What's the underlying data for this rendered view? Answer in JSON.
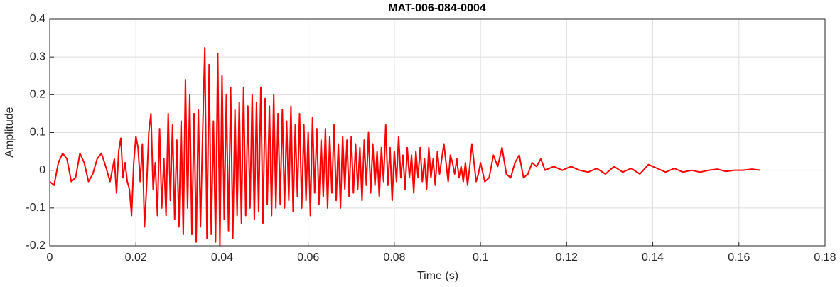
{
  "chart_data": {
    "type": "line",
    "title": "MAT-006-084-0004",
    "x_label": "Time (s)",
    "y_label": "Amplitude",
    "color": "#ff0000",
    "grid": true,
    "xlim": [
      0,
      0.18
    ],
    "xticks": [
      0,
      0.02,
      0.04,
      0.06,
      0.08,
      0.1,
      0.12,
      0.14,
      0.16,
      0.18
    ],
    "ylim": [
      -0.2,
      0.4
    ],
    "yticks": [
      -0.2,
      -0.1,
      0,
      0.1,
      0.2,
      0.3,
      0.4
    ],
    "x": [
      0,
      0.001,
      0.002,
      0.003,
      0.004,
      0.005,
      0.006,
      0.007,
      0.008,
      0.009,
      0.01,
      0.011,
      0.012,
      0.013,
      0.014,
      0.015,
      0.0155,
      0.016,
      0.0165,
      0.017,
      0.0175,
      0.018,
      0.0185,
      0.019,
      0.0195,
      0.02,
      0.0205,
      0.021,
      0.0215,
      0.022,
      0.0225,
      0.023,
      0.0235,
      0.024,
      0.0245,
      0.025,
      0.0255,
      0.026,
      0.0265,
      0.027,
      0.0275,
      0.028,
      0.0285,
      0.029,
      0.0295,
      0.03,
      0.0305,
      0.031,
      0.0315,
      0.032,
      0.0325,
      0.033,
      0.0335,
      0.034,
      0.0345,
      0.035,
      0.0355,
      0.036,
      0.0365,
      0.037,
      0.0375,
      0.038,
      0.0385,
      0.039,
      0.0395,
      0.04,
      0.0405,
      0.041,
      0.0415,
      0.042,
      0.0425,
      0.043,
      0.0435,
      0.044,
      0.0445,
      0.045,
      0.0455,
      0.046,
      0.0465,
      0.047,
      0.0475,
      0.048,
      0.0485,
      0.049,
      0.0495,
      0.05,
      0.0505,
      0.051,
      0.0515,
      0.052,
      0.0525,
      0.053,
      0.0535,
      0.054,
      0.0545,
      0.055,
      0.0555,
      0.056,
      0.0565,
      0.057,
      0.0575,
      0.058,
      0.0585,
      0.059,
      0.0595,
      0.06,
      0.0605,
      0.061,
      0.0615,
      0.062,
      0.0625,
      0.063,
      0.0635,
      0.064,
      0.0645,
      0.065,
      0.0655,
      0.066,
      0.0665,
      0.067,
      0.0675,
      0.068,
      0.0685,
      0.069,
      0.0695,
      0.07,
      0.0705,
      0.071,
      0.0715,
      0.072,
      0.0725,
      0.073,
      0.0735,
      0.074,
      0.0745,
      0.075,
      0.0755,
      0.076,
      0.0765,
      0.077,
      0.0775,
      0.078,
      0.0785,
      0.079,
      0.0795,
      0.08,
      0.0805,
      0.081,
      0.0815,
      0.082,
      0.0825,
      0.083,
      0.0835,
      0.084,
      0.0845,
      0.085,
      0.0855,
      0.086,
      0.0865,
      0.087,
      0.0875,
      0.088,
      0.0885,
      0.089,
      0.0895,
      0.09,
      0.0905,
      0.091,
      0.0915,
      0.092,
      0.0925,
      0.093,
      0.0935,
      0.094,
      0.0945,
      0.095,
      0.0955,
      0.096,
      0.0965,
      0.097,
      0.0975,
      0.098,
      0.0985,
      0.099,
      0.0995,
      0.1,
      0.101,
      0.102,
      0.103,
      0.104,
      0.105,
      0.106,
      0.107,
      0.108,
      0.109,
      0.11,
      0.111,
      0.112,
      0.113,
      0.114,
      0.115,
      0.117,
      0.119,
      0.121,
      0.123,
      0.125,
      0.127,
      0.129,
      0.131,
      0.133,
      0.135,
      0.137,
      0.139,
      0.141,
      0.143,
      0.145,
      0.147,
      0.149,
      0.151,
      0.153,
      0.155,
      0.157,
      0.159,
      0.161,
      0.163,
      0.165
    ],
    "values": [
      -0.03,
      -0.04,
      0.02,
      0.045,
      0.03,
      -0.03,
      -0.02,
      0.045,
      0.02,
      -0.03,
      -0.01,
      0.03,
      0.045,
      0.01,
      -0.03,
      0.03,
      -0.06,
      0.05,
      0.085,
      -0.02,
      0.02,
      -0.03,
      -0.05,
      -0.12,
      0.02,
      0.09,
      0.06,
      -0.03,
      0.07,
      -0.15,
      -0.04,
      0.1,
      0.15,
      -0.05,
      0.02,
      -0.12,
      0.11,
      -0.1,
      0.03,
      -0.12,
      0.15,
      -0.08,
      0.12,
      -0.13,
      0.08,
      -0.15,
      0.13,
      -0.17,
      0.24,
      -0.1,
      0.2,
      -0.17,
      0.15,
      -0.19,
      0.16,
      -0.15,
      0.1,
      0.325,
      -0.18,
      0.28,
      -0.17,
      0.13,
      -0.19,
      0.31,
      -0.2,
      0.25,
      -0.13,
      0.2,
      -0.16,
      0.22,
      -0.18,
      0.16,
      -0.12,
      0.18,
      -0.14,
      0.22,
      -0.12,
      0.17,
      -0.1,
      0.2,
      -0.13,
      0.18,
      -0.11,
      0.22,
      -0.14,
      0.19,
      -0.09,
      0.17,
      -0.12,
      0.2,
      -0.1,
      0.15,
      -0.09,
      0.16,
      -0.1,
      0.13,
      -0.08,
      0.17,
      -0.11,
      0.12,
      -0.07,
      0.15,
      -0.1,
      0.12,
      -0.08,
      0.1,
      -0.12,
      0.14,
      -0.06,
      0.11,
      -0.09,
      0.08,
      -0.07,
      0.11,
      -0.1,
      0.09,
      -0.06,
      0.12,
      -0.08,
      0.07,
      -0.1,
      0.09,
      -0.05,
      0.08,
      -0.07,
      0.09,
      -0.06,
      0.07,
      -0.05,
      0.06,
      -0.08,
      0.08,
      -0.04,
      0.1,
      -0.06,
      0.07,
      -0.04,
      0.05,
      -0.07,
      0.06,
      -0.03,
      0.12,
      -0.04,
      0.06,
      -0.08,
      0.05,
      -0.03,
      0.09,
      -0.02,
      0.04,
      -0.05,
      0.06,
      -0.02,
      0.04,
      -0.06,
      0.05,
      -0.02,
      0.06,
      -0.03,
      0.03,
      -0.05,
      0.06,
      -0.02,
      0.03,
      -0.04,
      0.05,
      -0.01,
      0.03,
      0.07,
      0.02,
      -0.03,
      0.04,
      0.02,
      -0.01,
      0.03,
      -0.02,
      0.01,
      -0.03,
      0.02,
      -0.04,
      0.01,
      0.07,
      0.02,
      -0.03,
      -0.01,
      0.02,
      -0.03,
      -0.02,
      0.04,
      0.01,
      0.06,
      -0.01,
      -0.02,
      0.02,
      0.04,
      -0.02,
      -0.01,
      0.02,
      0.01,
      0.03,
      0,
      0.01,
      0,
      0.01,
      0,
      -0.005,
      0.005,
      -0.01,
      0.01,
      -0.005,
      0.005,
      -0.01,
      0.015,
      0.005,
      -0.005,
      0.005,
      -0.005,
      0,
      -0.005,
      0,
      0.003,
      -0.003,
      0,
      0,
      0.003,
      0
    ]
  }
}
